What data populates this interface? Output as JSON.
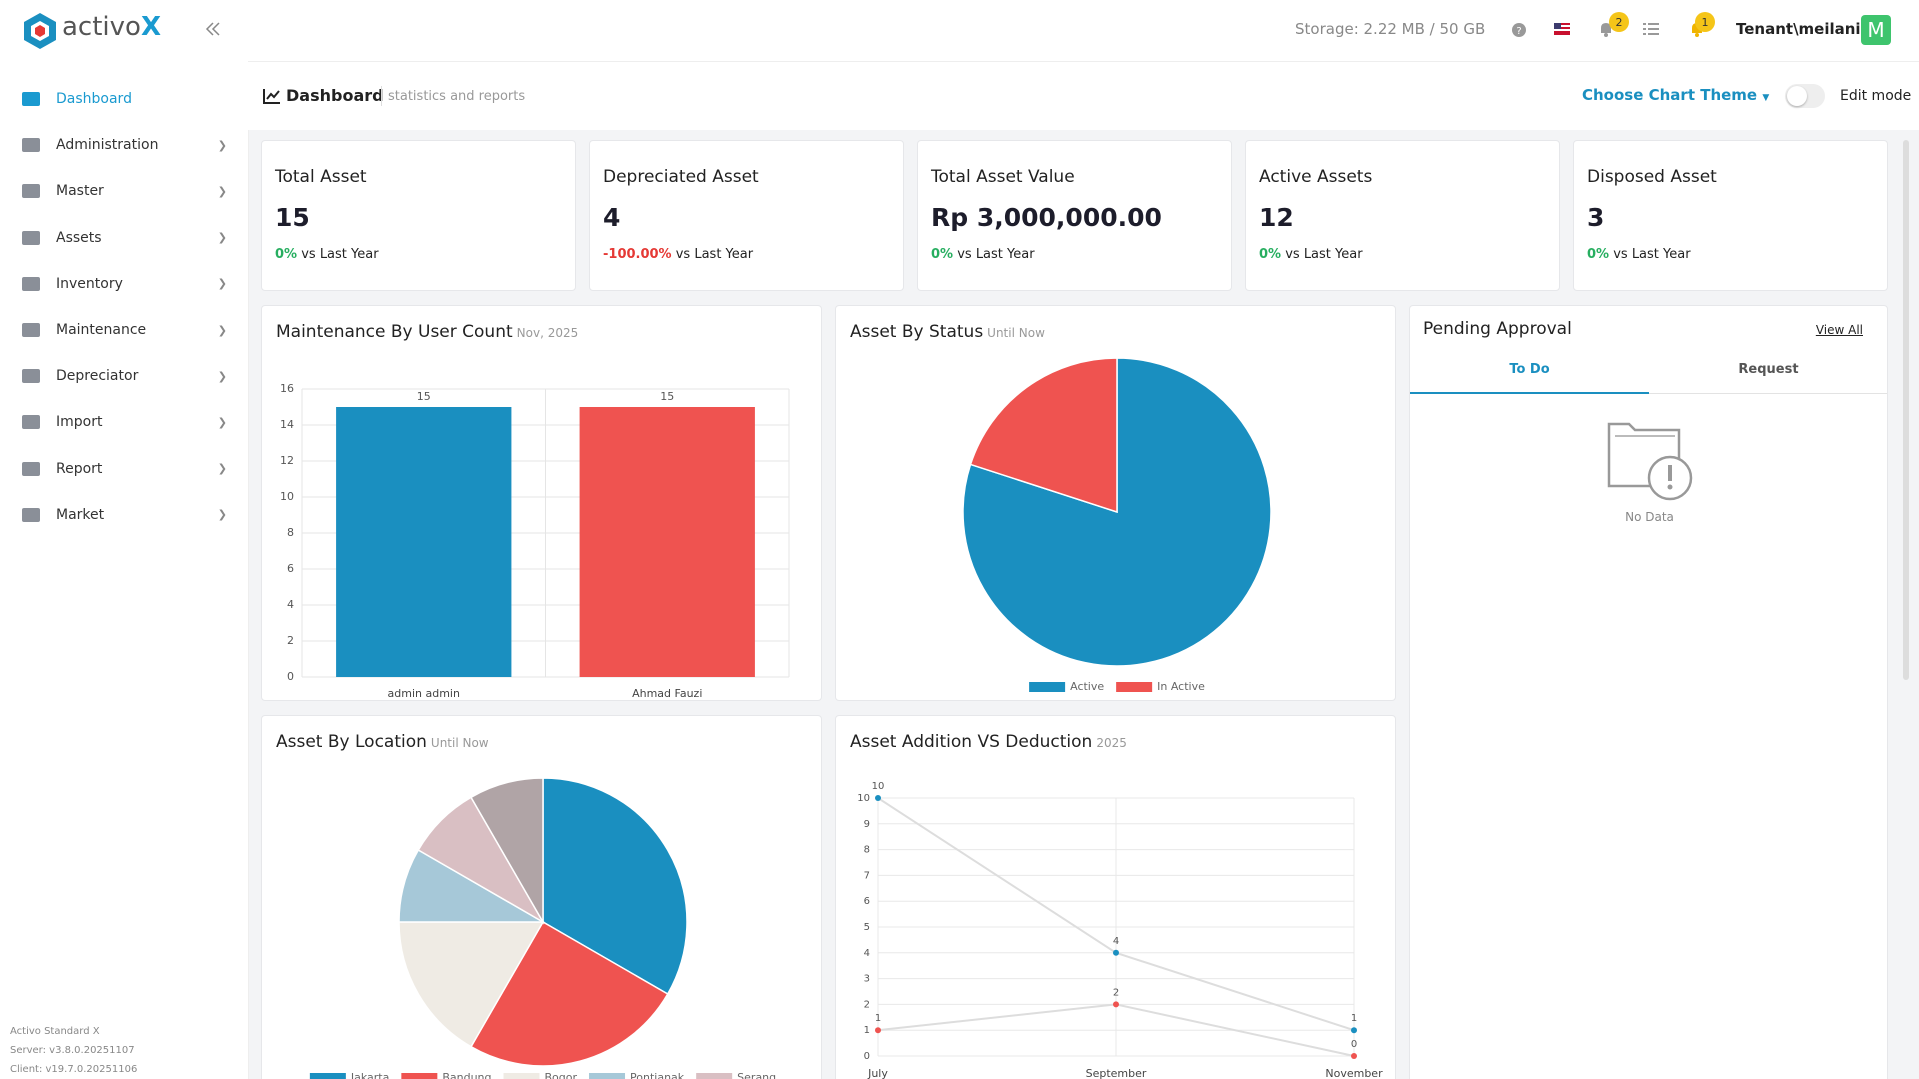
{
  "header": {
    "brand": "activo",
    "brand_x": "X",
    "storage": "Storage: 2.22 MB / 50 GB",
    "notification_count": 2,
    "alert_count": 1,
    "user": "Tenant\\meilani",
    "avatar": "M"
  },
  "sidebar": {
    "items": [
      "Dashboard",
      "Administration",
      "Master",
      "Assets",
      "Inventory",
      "Maintenance",
      "Depreciator",
      "Import",
      "Report",
      "Market"
    ],
    "footer": [
      "Activo Standard X",
      "Server: v3.8.0.20251107",
      "Client: v19.7.0.20251106"
    ]
  },
  "page_header": {
    "title": "Dashboard",
    "subtitle": "statistics and reports",
    "theme_button": "Choose Chart Theme",
    "edit_mode": "Edit mode"
  },
  "kpis": [
    {
      "title": "Total Asset",
      "value": "15",
      "change": "0%",
      "compare": "vs Last Year"
    },
    {
      "title": "Depreciated Asset",
      "value": "4",
      "change": "-100.00%",
      "compare": "vs Last Year"
    },
    {
      "title": "Total Asset Value",
      "value": "Rp 3,000,000.00",
      "change": "0%",
      "compare": "vs Last Year"
    },
    {
      "title": "Active Assets",
      "value": "12",
      "change": "0%",
      "compare": "vs Last Year"
    },
    {
      "title": "Disposed Asset",
      "value": "3",
      "change": "0%",
      "compare": "vs Last Year"
    }
  ],
  "pending_approval": {
    "title": "Pending Approval",
    "view_all": "View All",
    "tabs": [
      "To Do",
      "Request"
    ],
    "empty": "No Data"
  },
  "chart_data": [
    {
      "type": "bar",
      "title": "Maintenance By User Count",
      "subtitle": "Nov, 2025",
      "categories": [
        "admin admin",
        "Ahmad Fauzi"
      ],
      "values": [
        15,
        15
      ],
      "colors": [
        "#1a8fc0",
        "#ef5350"
      ],
      "ylim": [
        0,
        16
      ],
      "yticks": [
        0,
        2,
        4,
        6,
        8,
        10,
        12,
        14,
        16
      ],
      "grid": true
    },
    {
      "type": "pie",
      "title": "Asset By Status",
      "subtitle": "Until Now",
      "categories": [
        "Active",
        "In Active"
      ],
      "values": [
        12,
        3
      ],
      "colors": [
        "#1a8fc0",
        "#ef5350"
      ],
      "legend": "bottom"
    },
    {
      "type": "pie",
      "title": "Asset By Location",
      "subtitle": "Until Now",
      "categories": [
        "Jakarta",
        "Bandung",
        "Bogor",
        "Pontianak",
        "Serang",
        null
      ],
      "values": [
        4,
        3,
        2,
        1,
        1,
        1
      ],
      "colors": [
        "#1a8fc0",
        "#ef5350",
        "#efebe4",
        "#a6c8d8",
        "#d9bfc3",
        "#b0a4a6"
      ],
      "legend": "bottom"
    },
    {
      "type": "line",
      "title": "Asset Addition VS Deduction",
      "subtitle": "2025",
      "categories": [
        "July",
        "September",
        "November"
      ],
      "series": [
        {
          "color": "#1a8fc0",
          "values": [
            10,
            4,
            1
          ]
        },
        {
          "color": "#ef5350",
          "values": [
            1,
            2,
            0
          ]
        }
      ],
      "line_color": "#dddddd",
      "ylim": [
        0,
        10
      ],
      "yticks": [
        0,
        1,
        2,
        3,
        4,
        5,
        6,
        7,
        8,
        9,
        10
      ],
      "grid": true
    }
  ]
}
